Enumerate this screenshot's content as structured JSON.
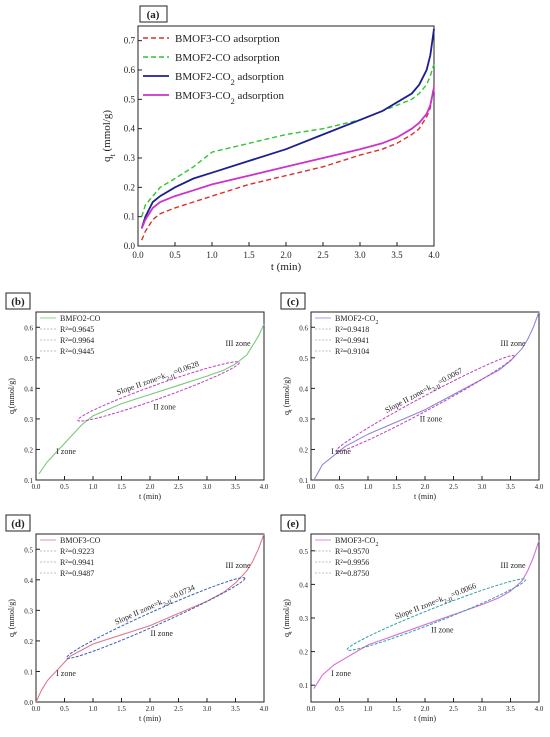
{
  "chart_data": [
    {
      "id": "a",
      "panel_label": "(a)",
      "type": "line",
      "xlabel": "t (min)",
      "ylabel": "q",
      "ylabel_sub": "t",
      "ylabel_unit": " (mmol/g)",
      "xlim": [
        0.0,
        4.0
      ],
      "ylim": [
        0.0,
        0.75
      ],
      "xticks": [
        "0.0",
        "0.5",
        "1.0",
        "1.5",
        "2.0",
        "2.5",
        "3.0",
        "3.5",
        "4.0"
      ],
      "yticks": [
        "0.0",
        "0.1",
        "0.2",
        "0.3",
        "0.4",
        "0.5",
        "0.6",
        "0.7"
      ],
      "legend_position": "upper-left",
      "series": [
        {
          "name": "BMOF3-CO adsorption",
          "name_main": "BMOF3-CO adsorption",
          "name_sub": "",
          "name_tail": "",
          "color": "#d9302c",
          "style": "dashed",
          "x": [
            0.05,
            0.1,
            0.2,
            0.3,
            0.5,
            0.75,
            1.0,
            1.5,
            2.0,
            2.5,
            3.0,
            3.3,
            3.5,
            3.7,
            3.8,
            3.9,
            3.95,
            4.0
          ],
          "y": [
            0.02,
            0.05,
            0.09,
            0.11,
            0.13,
            0.15,
            0.17,
            0.21,
            0.24,
            0.27,
            0.31,
            0.33,
            0.35,
            0.38,
            0.4,
            0.44,
            0.47,
            0.55
          ]
        },
        {
          "name": "BMOF2-CO adsorption",
          "name_main": "BMOF2-CO adsorption",
          "name_sub": "",
          "name_tail": "",
          "color": "#33c233",
          "style": "dashed",
          "x": [
            0.05,
            0.1,
            0.2,
            0.3,
            0.5,
            0.75,
            1.0,
            1.5,
            2.0,
            2.5,
            3.0,
            3.3,
            3.5,
            3.7,
            3.8,
            3.9,
            3.95,
            4.0
          ],
          "y": [
            0.1,
            0.14,
            0.17,
            0.2,
            0.23,
            0.27,
            0.32,
            0.35,
            0.38,
            0.4,
            0.43,
            0.46,
            0.48,
            0.5,
            0.52,
            0.55,
            0.58,
            0.62
          ]
        },
        {
          "name": "BMOF2-CO2 adsorption",
          "name_main": "BMOF2-CO",
          "name_sub": "2",
          "name_tail": " adsorption",
          "color": "#1b1f8f",
          "style": "solid",
          "x": [
            0.05,
            0.1,
            0.2,
            0.3,
            0.5,
            0.75,
            1.0,
            1.5,
            2.0,
            2.5,
            3.0,
            3.3,
            3.5,
            3.7,
            3.8,
            3.9,
            3.95,
            4.0
          ],
          "y": [
            0.06,
            0.1,
            0.15,
            0.17,
            0.2,
            0.23,
            0.25,
            0.29,
            0.33,
            0.38,
            0.43,
            0.46,
            0.49,
            0.52,
            0.55,
            0.6,
            0.65,
            0.74
          ]
        },
        {
          "name": "BMOF3-CO2 adsorption",
          "name_main": "BMOF3-CO",
          "name_sub": "2",
          "name_tail": " adsorption",
          "color": "#cc33cc",
          "style": "solid",
          "x": [
            0.05,
            0.1,
            0.2,
            0.3,
            0.5,
            0.75,
            1.0,
            1.5,
            2.0,
            2.5,
            3.0,
            3.3,
            3.5,
            3.7,
            3.8,
            3.9,
            3.95,
            4.0
          ],
          "y": [
            0.06,
            0.09,
            0.13,
            0.15,
            0.17,
            0.19,
            0.21,
            0.24,
            0.27,
            0.3,
            0.33,
            0.35,
            0.37,
            0.4,
            0.42,
            0.45,
            0.48,
            0.54
          ]
        }
      ]
    },
    {
      "id": "b",
      "panel_label": "(b)",
      "type": "line",
      "xlabel": "t (min)",
      "ylabel": "q",
      "ylabel_sub": "t",
      "ylabel_unit": "(mmol/g)",
      "xlim": [
        0.0,
        4.0
      ],
      "ylim": [
        0.1,
        0.65
      ],
      "xticks": [
        "0.0",
        "0.5",
        "1.0",
        "1.5",
        "2.0",
        "2.5",
        "3.0",
        "3.5",
        "4.0"
      ],
      "yticks": [
        "0.1",
        "0.2",
        "0.3",
        "0.4",
        "0.5",
        "0.6"
      ],
      "legend": [
        "BMFO2-CO",
        "R²=0.9645",
        "R²=0.9964",
        "R²=0.9445"
      ],
      "line_color": "#7ac97a",
      "x": [
        0.05,
        0.2,
        0.4,
        0.6,
        0.8,
        1.0,
        1.5,
        2.0,
        2.5,
        3.0,
        3.3,
        3.5,
        3.7,
        3.8,
        3.9,
        4.0
      ],
      "y": [
        0.12,
        0.16,
        0.2,
        0.24,
        0.28,
        0.31,
        0.35,
        0.38,
        0.41,
        0.44,
        0.46,
        0.48,
        0.51,
        0.54,
        0.57,
        0.61
      ],
      "slope_text": "Slope II zone=k",
      "slope_sub": "2-II",
      "slope_value": "=0.0628",
      "zones": [
        "I zone",
        "II zone",
        "III zone"
      ],
      "ellipse_x": [
        0.8,
        3.5
      ],
      "ellipse_y": [
        0.3,
        0.48
      ],
      "ellipse_color": "#c03ec0"
    },
    {
      "id": "c",
      "panel_label": "(c)",
      "type": "line",
      "xlabel": "t (min)",
      "ylabel": "q",
      "ylabel_sub": "t",
      "ylabel_unit": " (mmol/g)",
      "xlim": [
        0.0,
        4.0
      ],
      "ylim": [
        0.1,
        0.65
      ],
      "xticks": [
        "0.0",
        "0.5",
        "1.0",
        "1.5",
        "2.0",
        "2.5",
        "3.0",
        "3.5",
        "4.0"
      ],
      "yticks": [
        "0.1",
        "0.2",
        "0.3",
        "0.4",
        "0.5",
        "0.6"
      ],
      "legend_main": "BMOF2-CO",
      "legend_sub": "2",
      "legend": [
        "BMOF2-CO2",
        "R²=0.9418",
        "R²=0.9941",
        "R²=0.9104"
      ],
      "line_color": "#8a8ad6",
      "x": [
        0.05,
        0.2,
        0.4,
        0.6,
        0.8,
        1.0,
        1.5,
        2.0,
        2.5,
        3.0,
        3.3,
        3.5,
        3.7,
        3.8,
        3.9,
        4.0
      ],
      "y": [
        0.1,
        0.15,
        0.18,
        0.21,
        0.23,
        0.25,
        0.29,
        0.33,
        0.38,
        0.43,
        0.46,
        0.49,
        0.53,
        0.56,
        0.6,
        0.65
      ],
      "slope_text": "Slope II zone=k",
      "slope_sub": "2-II",
      "slope_value": "=0.0067",
      "zones": [
        "I zone",
        "II zone",
        "III zone"
      ],
      "ellipse_x": [
        0.5,
        3.5
      ],
      "ellipse_y": [
        0.2,
        0.5
      ],
      "ellipse_color": "#c03ec0"
    },
    {
      "id": "d",
      "panel_label": "(d)",
      "type": "line",
      "xlabel": "t (min)",
      "ylabel": "q",
      "ylabel_sub": "t",
      "ylabel_unit": " (mmol/g)",
      "xlim": [
        0.0,
        4.0
      ],
      "ylim": [
        0.0,
        0.55
      ],
      "xticks": [
        "0.0",
        "0.5",
        "1.0",
        "1.5",
        "2.0",
        "2.5",
        "3.0",
        "3.5",
        "4.0"
      ],
      "yticks": [
        "0.0",
        "0.1",
        "0.2",
        "0.3",
        "0.4",
        "0.5"
      ],
      "legend": [
        "BMOF3-CO",
        "R²=0.9223",
        "R²=0.9941",
        "R²=0.9487"
      ],
      "line_color": "#e07a8a",
      "x": [
        0.0,
        0.1,
        0.2,
        0.4,
        0.6,
        0.8,
        1.0,
        1.5,
        2.0,
        2.5,
        3.0,
        3.3,
        3.5,
        3.7,
        3.8,
        3.9,
        4.0
      ],
      "y": [
        0.0,
        0.04,
        0.07,
        0.11,
        0.15,
        0.17,
        0.19,
        0.22,
        0.25,
        0.29,
        0.33,
        0.36,
        0.39,
        0.43,
        0.46,
        0.5,
        0.55
      ],
      "slope_text": "Slope II zone=k",
      "slope_sub": "2-II",
      "slope_value": "=0.0734",
      "zones": [
        "I zone",
        "II zone",
        "III zone"
      ],
      "ellipse_x": [
        0.6,
        3.6
      ],
      "ellipse_y": [
        0.15,
        0.4
      ],
      "ellipse_color": "#3a5fb8"
    },
    {
      "id": "e",
      "panel_label": "(e)",
      "type": "line",
      "xlabel": "t (min)",
      "ylabel": "q",
      "ylabel_sub": "t",
      "ylabel_unit": " (mmol/g)",
      "xlim": [
        0.0,
        4.0
      ],
      "ylim": [
        0.05,
        0.55
      ],
      "xticks": [
        "0.0",
        "0.5",
        "1.0",
        "1.5",
        "2.0",
        "2.5",
        "3.0",
        "3.5",
        "4.0"
      ],
      "yticks": [
        "0.1",
        "0.2",
        "0.3",
        "0.4",
        "0.5"
      ],
      "legend_main": "BMOF3-CO",
      "legend_sub": "2",
      "legend": [
        "BMOF3-CO2",
        "R²=0.9570",
        "R²=0.9956",
        "R²=0.8750"
      ],
      "line_color": "#d86fd8",
      "x": [
        0.05,
        0.2,
        0.4,
        0.6,
        0.8,
        1.0,
        1.5,
        2.0,
        2.5,
        3.0,
        3.3,
        3.5,
        3.7,
        3.8,
        3.9,
        4.0
      ],
      "y": [
        0.09,
        0.13,
        0.16,
        0.18,
        0.2,
        0.22,
        0.25,
        0.28,
        0.31,
        0.34,
        0.36,
        0.38,
        0.41,
        0.44,
        0.48,
        0.53
      ],
      "slope_text": "Slope II zone=k",
      "slope_sub": "2-II",
      "slope_value": "=0.0066",
      "zones": [
        "I zone",
        "II zone",
        "III zone"
      ],
      "ellipse_x": [
        0.7,
        3.7
      ],
      "ellipse_y": [
        0.21,
        0.41
      ],
      "ellipse_color": "#2f9fa8"
    }
  ]
}
